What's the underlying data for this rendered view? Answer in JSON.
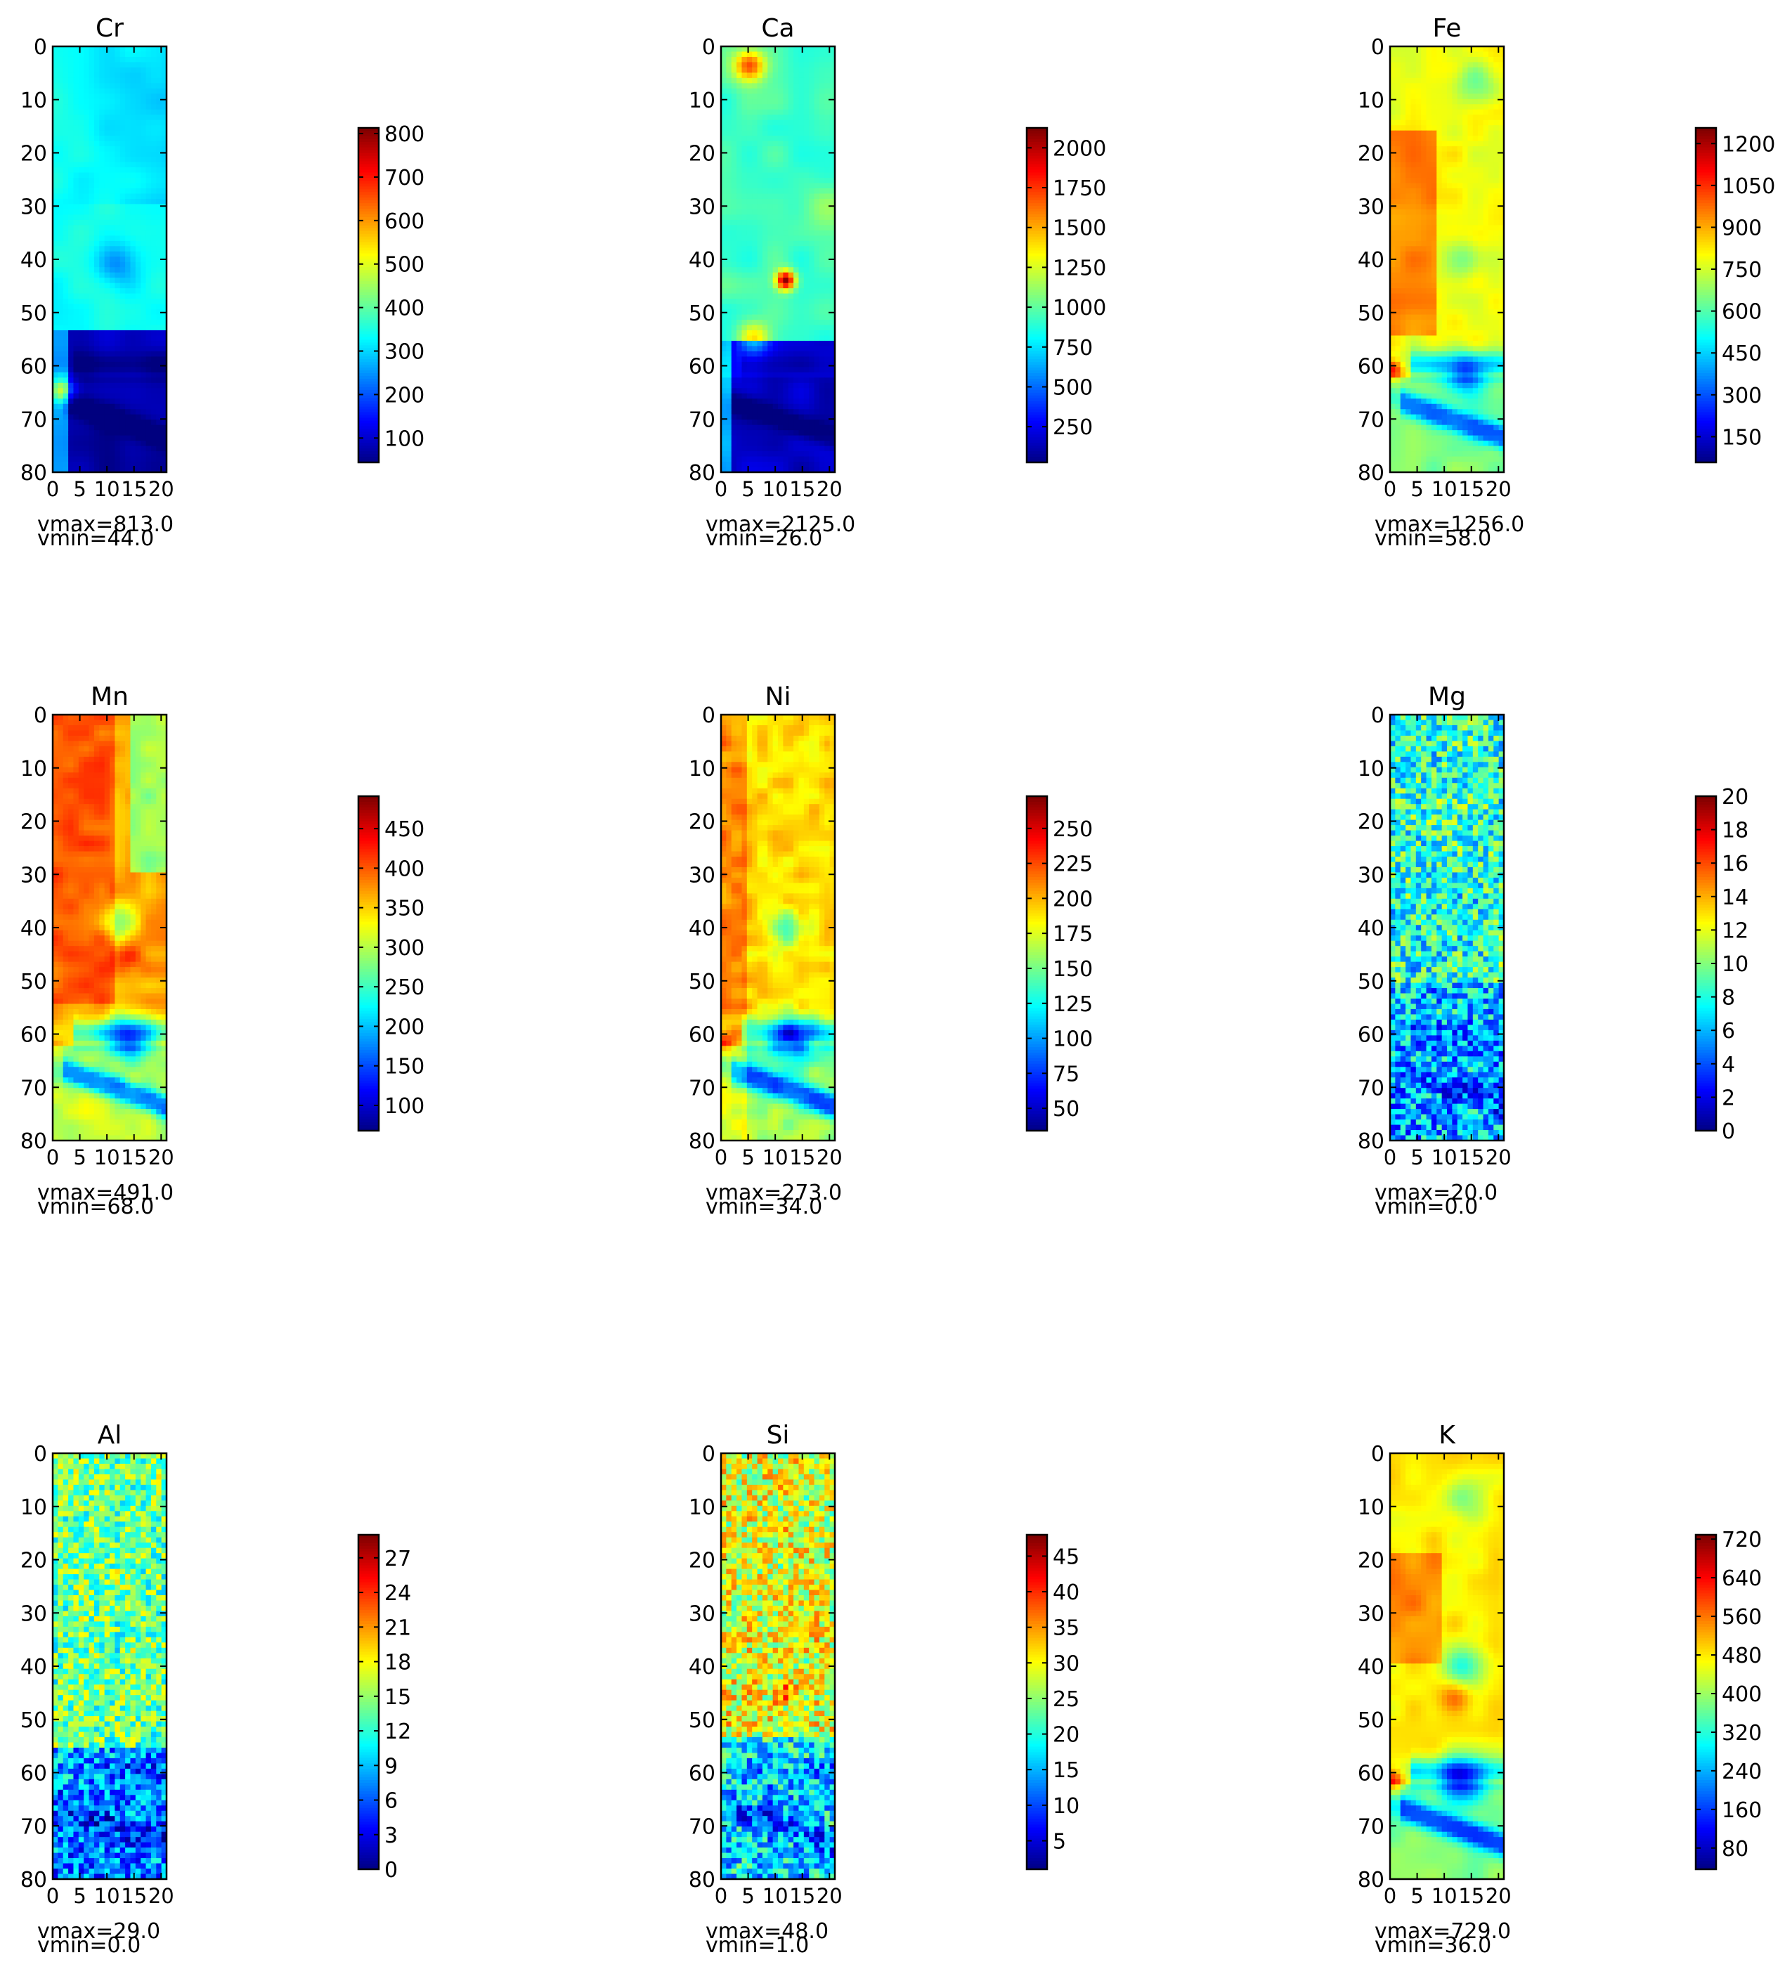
{
  "colors": {
    "colormap": "jet",
    "colormap_stops": [
      "#00007f",
      "#0000ff",
      "#007fff",
      "#00ffff",
      "#7fff7f",
      "#ffff00",
      "#ff7f00",
      "#ff0000",
      "#7f0000"
    ]
  },
  "chart_data": [
    {
      "type": "heatmap",
      "title": "Cr",
      "xlim": [
        0,
        21
      ],
      "ylim": [
        80,
        0
      ],
      "xticks": [
        "0",
        "5",
        "10",
        "15",
        "20"
      ],
      "yticks": [
        "0",
        "10",
        "20",
        "30",
        "40",
        "50",
        "60",
        "70",
        "80"
      ],
      "colorbar_ticks": [
        "100",
        "200",
        "300",
        "400",
        "500",
        "600",
        "700",
        "800"
      ],
      "vmax": 813.0,
      "vmin": 44.0,
      "vmax_label": "vmax=813.0",
      "vmin_label": "vmin=44.0"
    },
    {
      "type": "heatmap",
      "title": "Ca",
      "xlim": [
        0,
        21
      ],
      "ylim": [
        80,
        0
      ],
      "xticks": [
        "0",
        "5",
        "10",
        "15",
        "20"
      ],
      "yticks": [
        "0",
        "10",
        "20",
        "30",
        "40",
        "50",
        "60",
        "70",
        "80"
      ],
      "colorbar_ticks": [
        "250",
        "500",
        "750",
        "1000",
        "1250",
        "1500",
        "1750",
        "2000"
      ],
      "vmax": 2125.0,
      "vmin": 26.0,
      "vmax_label": "vmax=2125.0",
      "vmin_label": "vmin=26.0"
    },
    {
      "type": "heatmap",
      "title": "Fe",
      "xlim": [
        0,
        21
      ],
      "ylim": [
        80,
        0
      ],
      "xticks": [
        "0",
        "5",
        "10",
        "15",
        "20"
      ],
      "yticks": [
        "0",
        "10",
        "20",
        "30",
        "40",
        "50",
        "60",
        "70",
        "80"
      ],
      "colorbar_ticks": [
        "150",
        "300",
        "450",
        "600",
        "750",
        "900",
        "1050",
        "1200"
      ],
      "vmax": 1256.0,
      "vmin": 58.0,
      "vmax_label": "vmax=1256.0",
      "vmin_label": "vmin=58.0"
    },
    {
      "type": "heatmap",
      "title": "Mn",
      "xlim": [
        0,
        21
      ],
      "ylim": [
        80,
        0
      ],
      "xticks": [
        "0",
        "5",
        "10",
        "15",
        "20"
      ],
      "yticks": [
        "0",
        "10",
        "20",
        "30",
        "40",
        "50",
        "60",
        "70",
        "80"
      ],
      "colorbar_ticks": [
        "100",
        "150",
        "200",
        "250",
        "300",
        "350",
        "400",
        "450"
      ],
      "vmax": 491.0,
      "vmin": 68.0,
      "vmax_label": "vmax=491.0",
      "vmin_label": "vmin=68.0"
    },
    {
      "type": "heatmap",
      "title": "Ni",
      "xlim": [
        0,
        21
      ],
      "ylim": [
        80,
        0
      ],
      "xticks": [
        "0",
        "5",
        "10",
        "15",
        "20"
      ],
      "yticks": [
        "0",
        "10",
        "20",
        "30",
        "40",
        "50",
        "60",
        "70",
        "80"
      ],
      "colorbar_ticks": [
        "50",
        "75",
        "100",
        "125",
        "150",
        "175",
        "200",
        "225",
        "250"
      ],
      "vmax": 273.0,
      "vmin": 34.0,
      "vmax_label": "vmax=273.0",
      "vmin_label": "vmin=34.0"
    },
    {
      "type": "heatmap",
      "title": "Mg",
      "xlim": [
        0,
        21
      ],
      "ylim": [
        80,
        0
      ],
      "xticks": [
        "0",
        "5",
        "10",
        "15",
        "20"
      ],
      "yticks": [
        "0",
        "10",
        "20",
        "30",
        "40",
        "50",
        "60",
        "70",
        "80"
      ],
      "colorbar_ticks": [
        "0",
        "2",
        "4",
        "6",
        "8",
        "10",
        "12",
        "14",
        "16",
        "18",
        "20"
      ],
      "vmax": 20.0,
      "vmin": 0.0,
      "vmax_label": "vmax=20.0",
      "vmin_label": "vmin=0.0"
    },
    {
      "type": "heatmap",
      "title": "Al",
      "xlim": [
        0,
        21
      ],
      "ylim": [
        80,
        0
      ],
      "xticks": [
        "0",
        "5",
        "10",
        "15",
        "20"
      ],
      "yticks": [
        "0",
        "10",
        "20",
        "30",
        "40",
        "50",
        "60",
        "70",
        "80"
      ],
      "colorbar_ticks": [
        "0",
        "3",
        "6",
        "9",
        "12",
        "15",
        "18",
        "21",
        "24",
        "27"
      ],
      "vmax": 29.0,
      "vmin": 0.0,
      "vmax_label": "vmax=29.0",
      "vmin_label": "vmin=0.0"
    },
    {
      "type": "heatmap",
      "title": "Si",
      "xlim": [
        0,
        21
      ],
      "ylim": [
        80,
        0
      ],
      "xticks": [
        "0",
        "5",
        "10",
        "15",
        "20"
      ],
      "yticks": [
        "0",
        "10",
        "20",
        "30",
        "40",
        "50",
        "60",
        "70",
        "80"
      ],
      "colorbar_ticks": [
        "5",
        "10",
        "15",
        "20",
        "25",
        "30",
        "35",
        "40",
        "45"
      ],
      "vmax": 48.0,
      "vmin": 1.0,
      "vmax_label": "vmax=48.0",
      "vmin_label": "vmin=1.0"
    },
    {
      "type": "heatmap",
      "title": "K",
      "xlim": [
        0,
        21
      ],
      "ylim": [
        80,
        0
      ],
      "xticks": [
        "0",
        "5",
        "10",
        "15",
        "20"
      ],
      "yticks": [
        "0",
        "10",
        "20",
        "30",
        "40",
        "50",
        "60",
        "70",
        "80"
      ],
      "colorbar_ticks": [
        "80",
        "160",
        "240",
        "320",
        "400",
        "480",
        "560",
        "640",
        "720"
      ],
      "vmax": 729.0,
      "vmin": 36.0,
      "vmax_label": "vmax=729.0",
      "vmin_label": "vmin=36.0"
    }
  ]
}
